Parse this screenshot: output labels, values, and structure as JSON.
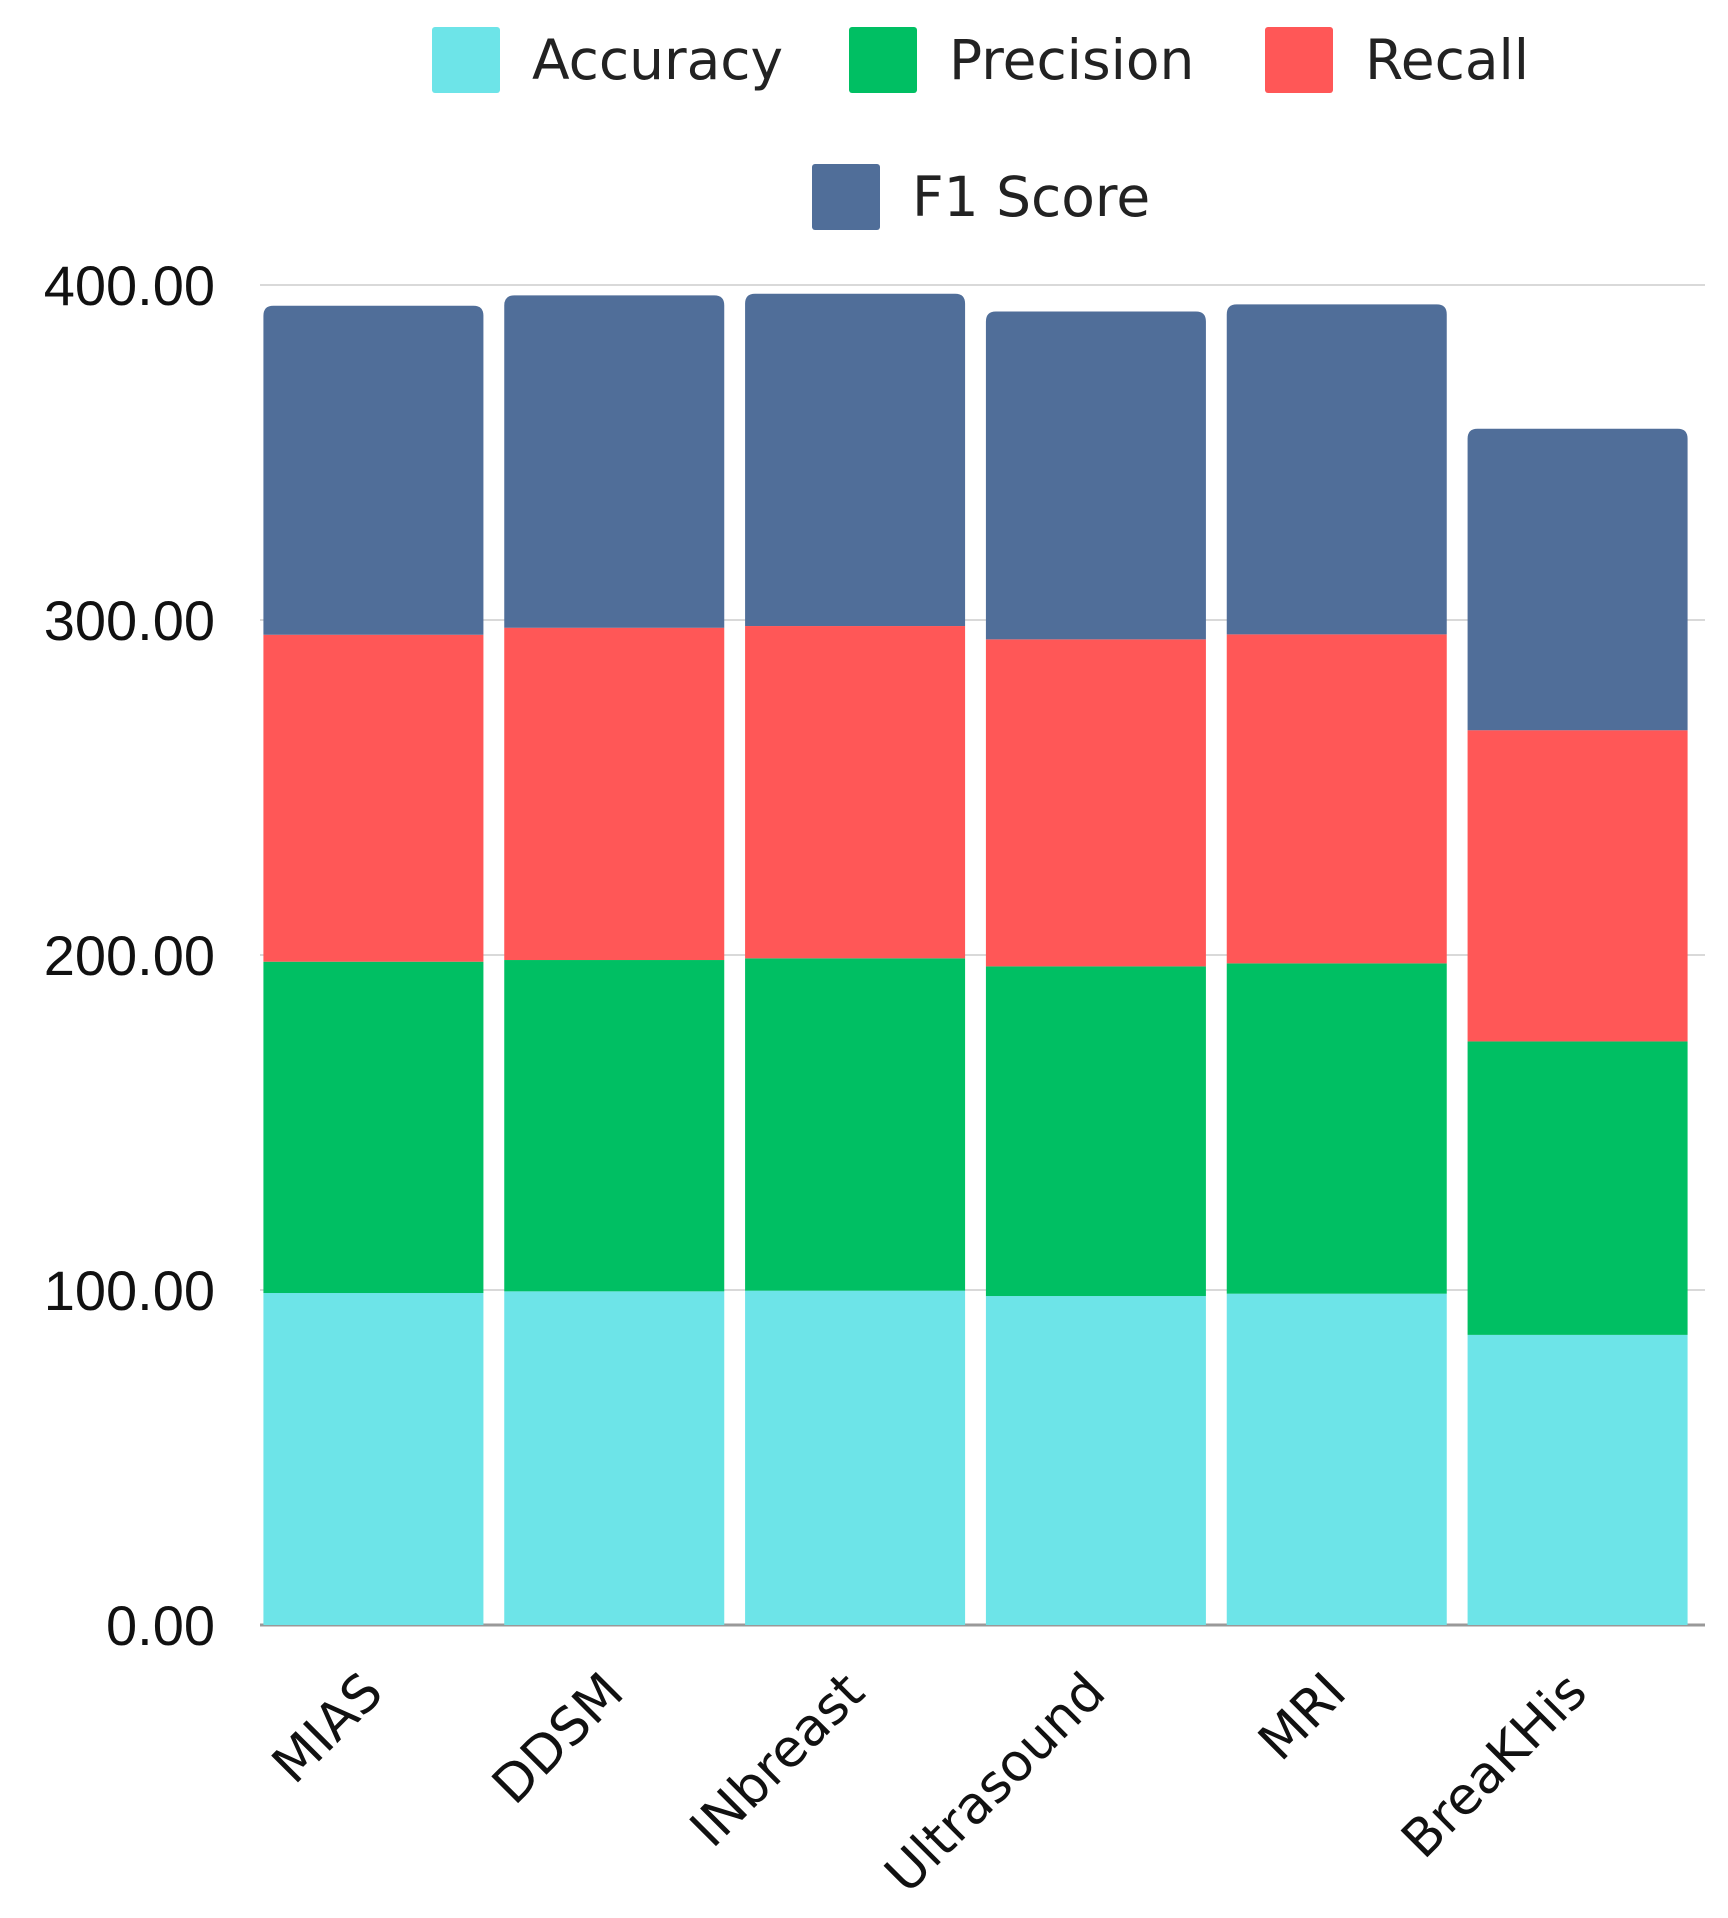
{
  "chart_data": {
    "type": "bar",
    "stacked": true,
    "categories": [
      "MIAS",
      "DDSM",
      "INbreast",
      "Ultrasound",
      "MRI",
      "BreaKHis"
    ],
    "series": [
      {
        "name": "Accuracy",
        "color": "#6DE4E8",
        "values": [
          99.1,
          99.6,
          99.8,
          98.2,
          98.9,
          86.6
        ]
      },
      {
        "name": "Precision",
        "color": "#00BF63",
        "values": [
          98.9,
          98.9,
          99.2,
          98.4,
          98.6,
          87.6
        ]
      },
      {
        "name": "Recall",
        "color": "#FF5757",
        "values": [
          97.6,
          99.2,
          99.2,
          97.6,
          98.2,
          92.9
        ]
      },
      {
        "name": "F1 Score",
        "color": "#506E99",
        "values": [
          98.2,
          99.2,
          99.2,
          97.9,
          98.5,
          90.0
        ]
      }
    ],
    "yticks": [
      "0.00",
      "100.00",
      "200.00",
      "300.00",
      "400.00"
    ],
    "ylim": [
      0,
      400
    ],
    "grid": true,
    "legend": "top-center",
    "title": "",
    "xlabel": "",
    "ylabel": ""
  }
}
